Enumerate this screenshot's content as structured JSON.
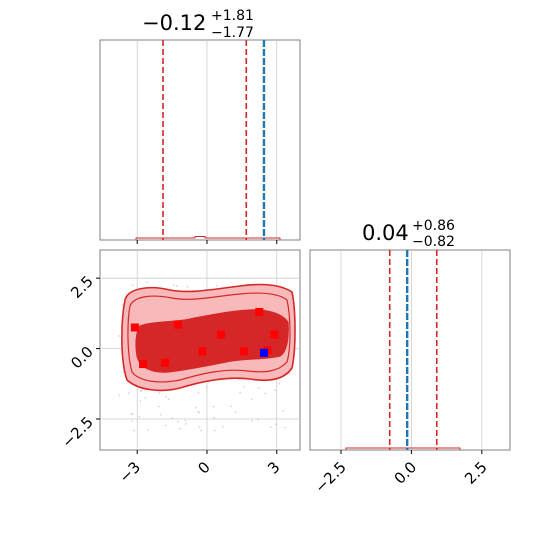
{
  "figure": {
    "colors": {
      "quantile": "#d62728",
      "truth": "#1f77b4",
      "contour_fill_outer": "#f7b9b9",
      "contour_fill_inner": "#d62728",
      "contour_line": "#d62728",
      "marker_red": "#ff0000",
      "marker_blue": "#0000ff",
      "grid": "#cccccc",
      "axes": "#808080"
    }
  },
  "chart_data": [
    {
      "type": "histogram",
      "panel": "marginal-x",
      "title_value": "−0.12",
      "title_plus": "+1.81",
      "title_minus": "−1.77",
      "xlim": [
        -4.6,
        4.0
      ],
      "quantiles": [
        -1.89,
        1.69
      ],
      "truth": 2.45,
      "grid": true
    },
    {
      "type": "scatter",
      "panel": "joint",
      "xlim": [
        -4.6,
        4.0
      ],
      "ylim": [
        -3.6,
        3.5
      ],
      "xticks": [
        {
          "v": -3,
          "label": "−3"
        },
        {
          "v": 0,
          "label": "0"
        },
        {
          "v": 3,
          "label": "3"
        }
      ],
      "yticks": [
        {
          "v": 2.5,
          "label": "2.5"
        },
        {
          "v": 0,
          "label": "0.0"
        },
        {
          "v": -2.5,
          "label": "−2.5"
        }
      ],
      "grid": true,
      "red_points": [
        {
          "x": -3.1,
          "y": 0.75
        },
        {
          "x": -2.75,
          "y": -0.55
        },
        {
          "x": -1.8,
          "y": -0.5
        },
        {
          "x": -1.25,
          "y": 0.85
        },
        {
          "x": -0.2,
          "y": -0.1
        },
        {
          "x": 0.6,
          "y": 0.5
        },
        {
          "x": 1.6,
          "y": -0.1
        },
        {
          "x": 2.25,
          "y": 1.3
        },
        {
          "x": 2.6,
          "y": -0.05
        },
        {
          "x": 2.9,
          "y": 0.5
        }
      ],
      "blue_points": [
        {
          "x": 2.45,
          "y": -0.15
        }
      ]
    },
    {
      "type": "histogram",
      "panel": "marginal-y",
      "title_value": "0.04",
      "title_plus": "+0.86",
      "title_minus": "−0.82",
      "xlim": [
        -3.6,
        3.5
      ],
      "quantiles": [
        -0.77,
        0.9
      ],
      "truth": -0.15,
      "xticks": [
        {
          "v": -2.5,
          "label": "−2.5"
        },
        {
          "v": 0,
          "label": "0.0"
        },
        {
          "v": 2.5,
          "label": "2.5"
        }
      ],
      "grid": true
    }
  ]
}
